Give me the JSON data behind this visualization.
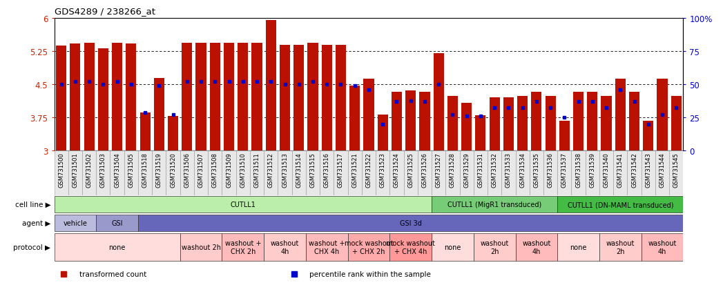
{
  "title": "GDS4289 / 238266_at",
  "bar_color": "#bb1100",
  "dot_color": "#0000cc",
  "bg_color": "#ffffff",
  "ylim_left": [
    3.0,
    6.0
  ],
  "ylim_right": [
    0,
    100
  ],
  "yticks_left": [
    3.0,
    3.75,
    4.5,
    5.25,
    6.0
  ],
  "yticks_right": [
    0,
    25,
    50,
    75,
    100
  ],
  "ytick_labels_left": [
    "3",
    "3.75",
    "4.5",
    "5.25",
    "6"
  ],
  "ytick_labels_right": [
    "0",
    "25",
    "50",
    "75",
    "100%"
  ],
  "hlines": [
    3.75,
    4.5,
    5.25
  ],
  "samples": [
    "GSM731500",
    "GSM731501",
    "GSM731502",
    "GSM731503",
    "GSM731504",
    "GSM731505",
    "GSM731518",
    "GSM731519",
    "GSM731520",
    "GSM731506",
    "GSM731507",
    "GSM731508",
    "GSM731509",
    "GSM731510",
    "GSM731511",
    "GSM731512",
    "GSM731513",
    "GSM731514",
    "GSM731515",
    "GSM731516",
    "GSM731517",
    "GSM731521",
    "GSM731522",
    "GSM731523",
    "GSM731524",
    "GSM731525",
    "GSM731526",
    "GSM731527",
    "GSM731528",
    "GSM731529",
    "GSM731531",
    "GSM731532",
    "GSM731533",
    "GSM731534",
    "GSM731535",
    "GSM731536",
    "GSM731537",
    "GSM731538",
    "GSM731539",
    "GSM731540",
    "GSM731541",
    "GSM731542",
    "GSM731543",
    "GSM731544",
    "GSM731545"
  ],
  "bar_heights": [
    5.37,
    5.42,
    5.43,
    5.32,
    5.43,
    5.42,
    3.87,
    4.65,
    3.78,
    5.44,
    5.44,
    5.43,
    5.43,
    5.43,
    5.44,
    5.95,
    5.39,
    5.39,
    5.44,
    5.39,
    5.39,
    4.47,
    4.63,
    3.82,
    4.33,
    4.37,
    4.33,
    5.2,
    4.23,
    4.08,
    3.8,
    4.2,
    4.2,
    4.23,
    4.33,
    4.23,
    3.68,
    4.33,
    4.33,
    4.23,
    4.62,
    4.33,
    3.68,
    4.63,
    4.23
  ],
  "dot_heights": [
    4.5,
    4.56,
    4.56,
    4.5,
    4.56,
    4.5,
    3.87,
    4.47,
    3.82,
    4.56,
    4.57,
    4.56,
    4.56,
    4.56,
    4.56,
    4.56,
    4.51,
    4.51,
    4.56,
    4.51,
    4.51,
    4.47,
    4.38,
    3.6,
    4.12,
    4.13,
    4.12,
    4.5,
    3.82,
    3.78,
    3.78,
    3.98,
    3.98,
    3.98,
    4.12,
    3.98,
    3.75,
    4.12,
    4.12,
    3.98,
    4.38,
    4.12,
    3.6,
    3.82,
    3.98
  ],
  "cell_line_groups": [
    {
      "label": "CUTLL1",
      "start": 0,
      "end": 27,
      "color": "#bbeeaa"
    },
    {
      "label": "CUTLL1 (MigR1 transduced)",
      "start": 27,
      "end": 36,
      "color": "#77cc77"
    },
    {
      "label": "CUTLL1 (DN-MAML transduced)",
      "start": 36,
      "end": 45,
      "color": "#44bb44"
    }
  ],
  "agent_groups": [
    {
      "label": "vehicle",
      "start": 0,
      "end": 3,
      "color": "#bbbbdd"
    },
    {
      "label": "GSI",
      "start": 3,
      "end": 6,
      "color": "#9999cc"
    },
    {
      "label": "GSI 3d",
      "start": 6,
      "end": 45,
      "color": "#6666bb"
    }
  ],
  "protocol_groups": [
    {
      "label": "none",
      "start": 0,
      "end": 9,
      "color": "#ffdddd"
    },
    {
      "label": "washout 2h",
      "start": 9,
      "end": 12,
      "color": "#ffcccc"
    },
    {
      "label": "washout +\nCHX 2h",
      "start": 12,
      "end": 15,
      "color": "#ffbbbb"
    },
    {
      "label": "washout\n4h",
      "start": 15,
      "end": 18,
      "color": "#ffcccc"
    },
    {
      "label": "washout +\nCHX 4h",
      "start": 18,
      "end": 21,
      "color": "#ffbbbb"
    },
    {
      "label": "mock washout\n+ CHX 2h",
      "start": 21,
      "end": 24,
      "color": "#ffaaaa"
    },
    {
      "label": "mock washout\n+ CHX 4h",
      "start": 24,
      "end": 27,
      "color": "#ff9999"
    },
    {
      "label": "none",
      "start": 27,
      "end": 30,
      "color": "#ffdddd"
    },
    {
      "label": "washout\n2h",
      "start": 30,
      "end": 33,
      "color": "#ffcccc"
    },
    {
      "label": "washout\n4h",
      "start": 33,
      "end": 36,
      "color": "#ffbbbb"
    },
    {
      "label": "none",
      "start": 36,
      "end": 39,
      "color": "#ffdddd"
    },
    {
      "label": "washout\n2h",
      "start": 39,
      "end": 42,
      "color": "#ffcccc"
    },
    {
      "label": "washout\n4h",
      "start": 42,
      "end": 45,
      "color": "#ffbbbb"
    }
  ],
  "legend_items": [
    {
      "label": "transformed count",
      "color": "#bb1100"
    },
    {
      "label": "percentile rank within the sample",
      "color": "#0000cc"
    }
  ],
  "row_labels": [
    "cell line",
    "agent",
    "protocol"
  ]
}
